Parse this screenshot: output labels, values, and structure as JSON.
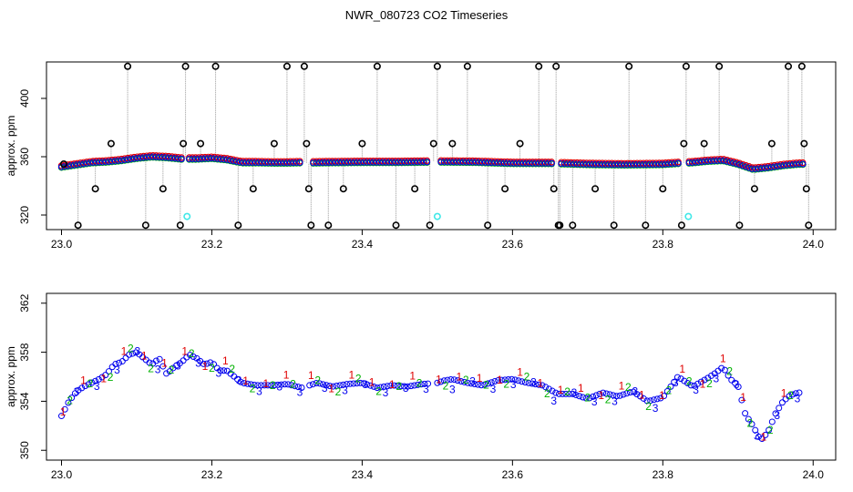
{
  "title": "NWR_080723  CO2 Timeseries",
  "colors": {
    "red": "#e00000",
    "green": "#00b000",
    "blue": "#0000ee",
    "cyan": "#40e8e8",
    "black": "#000000",
    "gray": "#9a9a9a"
  },
  "chart_data": [
    {
      "type": "scatter",
      "title": "NWR_080723  CO2 Timeseries",
      "ylabel": "approx. ppm",
      "xlabel": "",
      "xlim": [
        22.98,
        24.03
      ],
      "ylim": [
        310,
        425
      ],
      "x_ticks": [
        "23.0",
        "23.2",
        "23.4",
        "23.6",
        "23.8",
        "24.0"
      ],
      "y_ticks": [
        "320",
        "360",
        "400"
      ],
      "series": [
        {
          "kind": "trace",
          "colors": [
            "red",
            "green",
            "blue"
          ],
          "x": [
            23.0,
            23.02,
            23.04,
            23.06,
            23.08,
            23.1,
            23.12,
            23.14,
            23.16,
            23.18,
            23.2,
            23.22,
            23.24,
            23.26,
            23.28,
            23.3,
            23.32,
            23.33,
            23.35,
            23.4,
            23.45,
            23.5,
            23.55,
            23.6,
            23.65,
            23.7,
            23.75,
            23.8,
            23.82,
            23.84,
            23.86,
            23.88,
            23.9,
            23.92,
            23.94,
            23.96,
            23.98,
            23.99
          ],
          "y": [
            353,
            354.5,
            356,
            356.5,
            357.5,
            359,
            360,
            359.5,
            358.5,
            358.5,
            359,
            358,
            356,
            356,
            355.8,
            355.8,
            356,
            355.8,
            356,
            356.2,
            356.2,
            356.5,
            356.3,
            355.5,
            355.5,
            354.8,
            354.5,
            354.8,
            355.5,
            356,
            357,
            357.5,
            355,
            351.5,
            352.5,
            354,
            355,
            355
          ]
        },
        {
          "kind": "reference",
          "color": "black",
          "x": [
            23.003,
            23.022,
            23.045,
            23.066,
            23.088,
            23.112,
            23.135,
            23.158,
            23.162,
            23.165,
            23.185,
            23.205,
            23.235,
            23.255,
            23.283,
            23.3,
            23.323,
            23.326,
            23.329,
            23.332,
            23.355,
            23.375,
            23.4,
            23.42,
            23.445,
            23.47,
            23.49,
            23.495,
            23.5,
            23.52,
            23.54,
            23.567,
            23.59,
            23.61,
            23.635,
            23.655,
            23.658,
            23.661,
            23.663,
            23.68,
            23.71,
            23.735,
            23.755,
            23.777,
            23.8,
            23.825,
            23.828,
            23.831,
            23.855,
            23.875,
            23.902,
            23.922,
            23.945,
            23.967,
            23.985,
            23.988,
            23.991,
            23.994
          ],
          "y": [
            355,
            313,
            338,
            369,
            422,
            313,
            338,
            313,
            369,
            422,
            369,
            422,
            313,
            338,
            369,
            422,
            422,
            369,
            338,
            313,
            313,
            338,
            369,
            422,
            313,
            338,
            313,
            369,
            422,
            369,
            422,
            313,
            338,
            369,
            422,
            338,
            422,
            313,
            313,
            313,
            338,
            313,
            422,
            313,
            338,
            313,
            369,
            422,
            369,
            422,
            313,
            338,
            369,
            422,
            422,
            369,
            338,
            313
          ]
        },
        {
          "kind": "highlight",
          "color": "cyan",
          "x": [
            23.167,
            23.5,
            23.834
          ],
          "y": [
            319,
            319,
            319
          ]
        }
      ]
    },
    {
      "type": "scatter",
      "ylabel": "approx. ppm",
      "xlabel": "",
      "xlim": [
        22.98,
        24.03
      ],
      "ylim": [
        349.2,
        362.8
      ],
      "x_ticks": [
        "23.0",
        "23.2",
        "23.4",
        "23.6",
        "23.8",
        "24.0"
      ],
      "y_ticks": [
        "350",
        "354",
        "358",
        "362"
      ],
      "symbols": [
        "1",
        "2",
        "3"
      ],
      "series": [
        {
          "kind": "base",
          "x": [
            23.0,
            23.01,
            23.02,
            23.03,
            23.04,
            23.05,
            23.06,
            23.07,
            23.08,
            23.09,
            23.1,
            23.11,
            23.12,
            23.13,
            23.14,
            23.15,
            23.16,
            23.17,
            23.18,
            23.19,
            23.2,
            23.21,
            23.22,
            23.23,
            23.24,
            23.26,
            23.28,
            23.3,
            23.32,
            23.34,
            23.36,
            23.38,
            23.4,
            23.42,
            23.44,
            23.46,
            23.48,
            23.5,
            23.51,
            23.52,
            23.54,
            23.56,
            23.58,
            23.6,
            23.62,
            23.64,
            23.66,
            23.68,
            23.7,
            23.72,
            23.74,
            23.76,
            23.78,
            23.8,
            23.82,
            23.84,
            23.86,
            23.87,
            23.88,
            23.89,
            23.9,
            23.91,
            23.92,
            23.93,
            23.94,
            23.95,
            23.96,
            23.97,
            23.98
          ],
          "y": [
            352.8,
            354.0,
            354.8,
            355.2,
            355.5,
            355.8,
            356.2,
            357.0,
            357.2,
            357.8,
            358.0,
            357.5,
            357.0,
            357.5,
            356.2,
            356.8,
            357.2,
            357.8,
            357.5,
            357.0,
            357.2,
            356.5,
            356.5,
            356.0,
            355.5,
            355.3,
            355.3,
            355.4,
            355.1,
            355.5,
            355.2,
            355.4,
            355.5,
            355.1,
            355.3,
            355.2,
            355.4,
            355.5,
            355.7,
            355.8,
            355.5,
            355.3,
            355.7,
            355.8,
            355.5,
            355.3,
            354.6,
            354.6,
            354.2,
            354.7,
            354.4,
            354.8,
            354.0,
            354.3,
            356.0,
            355.2,
            355.9,
            356.3,
            356.8,
            355.8,
            355.3,
            352.9,
            352.0,
            350.8,
            351.5,
            353.0,
            354.0,
            354.5,
            354.7
          ]
        }
      ]
    }
  ]
}
